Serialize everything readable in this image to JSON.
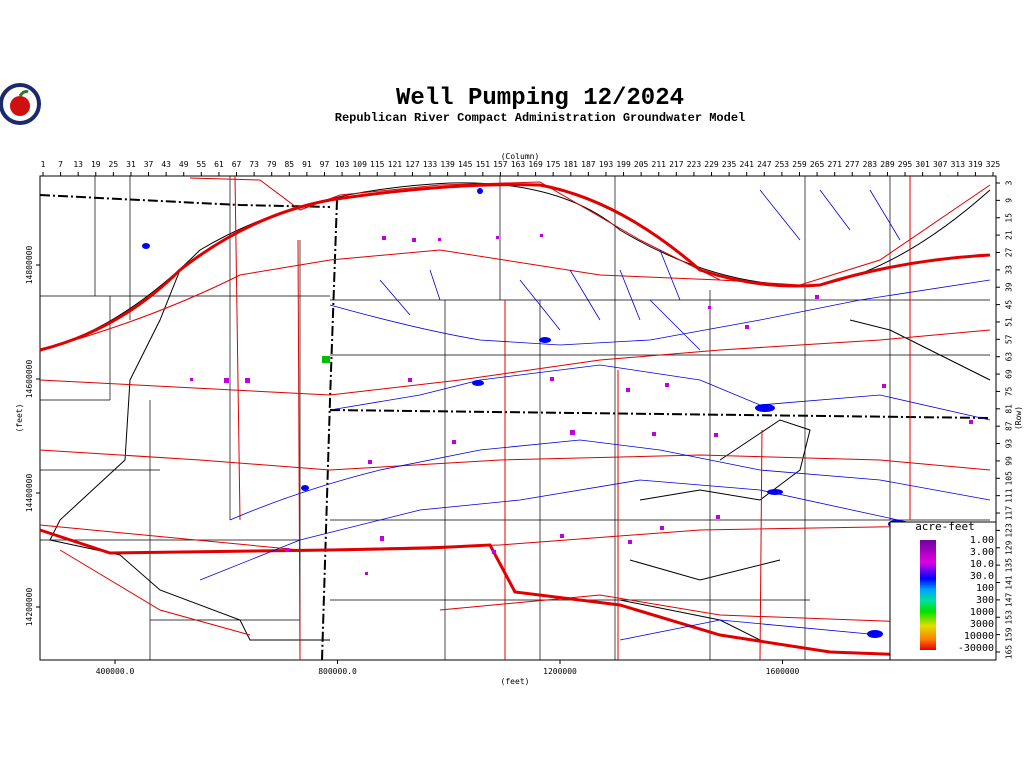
{
  "header": {
    "title": "Well Pumping 12/2024",
    "subtitle": "Republican River Compact Administration Groundwater Model"
  },
  "axes": {
    "column_label": "(Column)",
    "row_label": "(Row)",
    "x_feet_label": "(feet)",
    "y_feet_label": "(feet)",
    "columns": [
      1,
      7,
      13,
      19,
      25,
      31,
      37,
      43,
      49,
      55,
      61,
      67,
      73,
      79,
      85,
      91,
      97,
      103,
      109,
      115,
      121,
      127,
      133,
      139,
      145,
      151,
      157,
      163,
      169,
      175,
      181,
      187,
      193,
      199,
      205,
      211,
      217,
      223,
      229,
      235,
      241,
      247,
      253,
      259,
      265,
      271,
      277,
      283,
      289,
      295,
      301,
      307,
      313,
      319,
      325
    ],
    "rows": [
      3,
      9,
      15,
      21,
      27,
      33,
      39,
      45,
      51,
      57,
      63,
      69,
      75,
      81,
      87,
      93,
      99,
      105,
      111,
      117,
      123,
      129,
      135,
      141,
      147,
      153,
      159,
      165
    ],
    "x_feet": [
      {
        "value": 400000,
        "label": "400000.0"
      },
      {
        "value": 800000,
        "label": "800000.0"
      },
      1200000,
      1600000
    ],
    "y_feet": [
      14800000,
      14600000,
      14400000,
      14200000
    ]
  },
  "legend": {
    "title": "acre-feet",
    "labels": [
      "1.00",
      "3.00",
      "10.0",
      "30.0",
      "100",
      "300",
      "1000",
      "3000",
      "10000",
      "-30000"
    ]
  }
}
